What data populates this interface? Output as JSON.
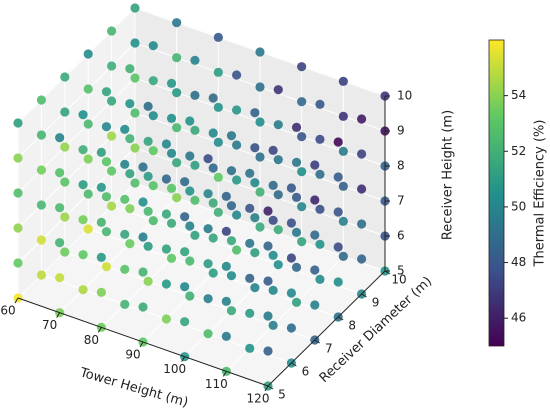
{
  "chart_data": {
    "type": "scatter3d",
    "xlabel": "Tower Height (m)",
    "ylabel": "Receiver Diameter (m)",
    "zlabel": "Receiver Height (m)",
    "colorbar_label": "Thermal Efficiency (%)",
    "xlim": [
      60,
      120
    ],
    "ylim": [
      5,
      10
    ],
    "zlim": [
      5,
      10
    ],
    "clim": [
      45,
      56
    ],
    "xticks": [
      60,
      70,
      80,
      90,
      100,
      110,
      120
    ],
    "yticks": [
      5,
      6,
      7,
      8,
      9,
      10
    ],
    "zticks": [
      5,
      6,
      7,
      8,
      9,
      10
    ],
    "cticks": [
      46,
      48,
      50,
      52,
      54
    ],
    "colormap": "viridis",
    "x": [
      60,
      60,
      60,
      60,
      60,
      60,
      60,
      60,
      60,
      60,
      60,
      60,
      60,
      60,
      60,
      60,
      60,
      60,
      60,
      60,
      60,
      60,
      60,
      60,
      60,
      60,
      60,
      60,
      60,
      60,
      60,
      60,
      60,
      60,
      60,
      60,
      70,
      70,
      70,
      70,
      70,
      70,
      70,
      70,
      70,
      70,
      70,
      70,
      70,
      70,
      70,
      70,
      70,
      70,
      70,
      70,
      70,
      70,
      70,
      70,
      70,
      70,
      70,
      70,
      70,
      70,
      70,
      70,
      70,
      70,
      70,
      70,
      80,
      80,
      80,
      80,
      80,
      80,
      80,
      80,
      80,
      80,
      80,
      80,
      80,
      80,
      80,
      80,
      80,
      80,
      80,
      80,
      80,
      80,
      80,
      80,
      80,
      80,
      80,
      80,
      80,
      80,
      80,
      80,
      80,
      80,
      80,
      80,
      90,
      90,
      90,
      90,
      90,
      90,
      90,
      90,
      90,
      90,
      90,
      90,
      90,
      90,
      90,
      90,
      90,
      90,
      90,
      90,
      90,
      90,
      90,
      90,
      90,
      90,
      90,
      90,
      90,
      90,
      90,
      90,
      90,
      90,
      90,
      90,
      100,
      100,
      100,
      100,
      100,
      100,
      100,
      100,
      100,
      100,
      100,
      100,
      100,
      100,
      100,
      100,
      100,
      100,
      100,
      100,
      100,
      100,
      100,
      100,
      100,
      100,
      100,
      100,
      100,
      100,
      100,
      100,
      100,
      100,
      100,
      100,
      110,
      110,
      110,
      110,
      110,
      110,
      110,
      110,
      110,
      110,
      110,
      110,
      110,
      110,
      110,
      110,
      110,
      110,
      110,
      110,
      110,
      110,
      110,
      110,
      110,
      110,
      110,
      110,
      110,
      110,
      110,
      110,
      110,
      110,
      110,
      110,
      120,
      120,
      120,
      120,
      120,
      120,
      120,
      120,
      120,
      120,
      120,
      120,
      120,
      120,
      120,
      120,
      120,
      120,
      120,
      120,
      120,
      120,
      120,
      120,
      120,
      120,
      120,
      120,
      120,
      120,
      120,
      120,
      120,
      120,
      120,
      120
    ],
    "y": [
      5,
      5,
      5,
      5,
      5,
      5,
      6,
      6,
      6,
      6,
      6,
      6,
      7,
      7,
      7,
      7,
      7,
      7,
      8,
      8,
      8,
      8,
      8,
      8,
      9,
      9,
      9,
      9,
      9,
      9,
      10,
      10,
      10,
      10,
      10,
      10,
      5,
      5,
      5,
      5,
      5,
      5,
      6,
      6,
      6,
      6,
      6,
      6,
      7,
      7,
      7,
      7,
      7,
      7,
      8,
      8,
      8,
      8,
      8,
      8,
      9,
      9,
      9,
      9,
      9,
      9,
      10,
      10,
      10,
      10,
      10,
      10,
      5,
      5,
      5,
      5,
      5,
      5,
      6,
      6,
      6,
      6,
      6,
      6,
      7,
      7,
      7,
      7,
      7,
      7,
      8,
      8,
      8,
      8,
      8,
      8,
      9,
      9,
      9,
      9,
      9,
      9,
      10,
      10,
      10,
      10,
      10,
      10,
      5,
      5,
      5,
      5,
      5,
      5,
      6,
      6,
      6,
      6,
      6,
      6,
      7,
      7,
      7,
      7,
      7,
      7,
      8,
      8,
      8,
      8,
      8,
      8,
      9,
      9,
      9,
      9,
      9,
      9,
      10,
      10,
      10,
      10,
      10,
      10,
      5,
      5,
      5,
      5,
      5,
      5,
      6,
      6,
      6,
      6,
      6,
      6,
      7,
      7,
      7,
      7,
      7,
      7,
      8,
      8,
      8,
      8,
      8,
      8,
      9,
      9,
      9,
      9,
      9,
      9,
      10,
      10,
      10,
      10,
      10,
      10,
      5,
      5,
      5,
      5,
      5,
      5,
      6,
      6,
      6,
      6,
      6,
      6,
      7,
      7,
      7,
      7,
      7,
      7,
      8,
      8,
      8,
      8,
      8,
      8,
      9,
      9,
      9,
      9,
      9,
      9,
      10,
      10,
      10,
      10,
      10,
      10,
      5,
      5,
      5,
      5,
      5,
      5,
      6,
      6,
      6,
      6,
      6,
      6,
      7,
      7,
      7,
      7,
      7,
      7,
      8,
      8,
      8,
      8,
      8,
      8,
      9,
      9,
      9,
      9,
      9,
      9,
      10,
      10,
      10,
      10,
      10,
      10
    ],
    "z": [
      5,
      6,
      7,
      8,
      9,
      10,
      5,
      6,
      7,
      8,
      9,
      10,
      5,
      6,
      7,
      8,
      9,
      10,
      5,
      6,
      7,
      8,
      9,
      10,
      5,
      6,
      7,
      8,
      9,
      10,
      5,
      6,
      7,
      8,
      9,
      10,
      5,
      6,
      7,
      8,
      9,
      10,
      5,
      6,
      7,
      8,
      9,
      10,
      5,
      6,
      7,
      8,
      9,
      10,
      5,
      6,
      7,
      8,
      9,
      10,
      5,
      6,
      7,
      8,
      9,
      10,
      5,
      6,
      7,
      8,
      9,
      10,
      5,
      6,
      7,
      8,
      9,
      10,
      5,
      6,
      7,
      8,
      9,
      10,
      5,
      6,
      7,
      8,
      9,
      10,
      5,
      6,
      7,
      8,
      9,
      10,
      5,
      6,
      7,
      8,
      9,
      10,
      5,
      6,
      7,
      8,
      9,
      10,
      5,
      6,
      7,
      8,
      9,
      10,
      5,
      6,
      7,
      8,
      9,
      10,
      5,
      6,
      7,
      8,
      9,
      10,
      5,
      6,
      7,
      8,
      9,
      10,
      5,
      6,
      7,
      8,
      9,
      10,
      5,
      6,
      7,
      8,
      9,
      10,
      5,
      6,
      7,
      8,
      9,
      10,
      5,
      6,
      7,
      8,
      9,
      10,
      5,
      6,
      7,
      8,
      9,
      10,
      5,
      6,
      7,
      8,
      9,
      10,
      5,
      6,
      7,
      8,
      9,
      10,
      5,
      6,
      7,
      8,
      9,
      10,
      5,
      6,
      7,
      8,
      9,
      10,
      5,
      6,
      7,
      8,
      9,
      10,
      5,
      6,
      7,
      8,
      9,
      10,
      5,
      6,
      7,
      8,
      9,
      10,
      5,
      6,
      7,
      8,
      9,
      10,
      5,
      6,
      7,
      8,
      9,
      10,
      5,
      6,
      7,
      8,
      9,
      10,
      5,
      6,
      7,
      8,
      9,
      10,
      5,
      6,
      7,
      8,
      9,
      10,
      5,
      6,
      7,
      8,
      9,
      10,
      5,
      6,
      7,
      8,
      9,
      10,
      5,
      6,
      7,
      8,
      9,
      10
    ],
    "values": [
      55.8,
      53.3,
      54.1,
      52.7,
      54.0,
      51.1,
      54.9,
      55.2,
      52.3,
      53.6,
      52.2,
      52.6,
      53.5,
      54.3,
      52.9,
      54.2,
      51.3,
      51.7,
      55.4,
      52.5,
      53.8,
      52.4,
      52.8,
      50.3,
      54.5,
      53.1,
      54.4,
      51.5,
      51.9,
      52.2,
      52.7,
      54.0,
      52.6,
      53.0,
      50.5,
      51.3,
      53.7,
      55.0,
      52.1,
      52.5,
      52.8,
      49.9,
      54.6,
      53.2,
      53.6,
      51.1,
      51.9,
      50.5,
      55.2,
      52.3,
      52.7,
      53.0,
      50.1,
      51.4,
      53.4,
      53.8,
      51.3,
      52.1,
      50.7,
      52.0,
      52.5,
      52.9,
      53.2,
      50.3,
      51.6,
      50.2,
      54.0,
      51.5,
      52.3,
      50.9,
      52.2,
      49.3,
      53.5,
      53.8,
      50.9,
      52.2,
      50.8,
      51.2,
      52.1,
      52.9,
      51.5,
      52.8,
      49.9,
      50.3,
      54.0,
      51.1,
      52.4,
      51.0,
      51.4,
      48.9,
      53.1,
      51.7,
      53.0,
      50.1,
      50.5,
      50.8,
      51.3,
      52.6,
      51.2,
      51.6,
      49.1,
      49.9,
      51.9,
      53.2,
      50.3,
      50.7,
      51.0,
      48.1,
      53.2,
      51.8,
      52.2,
      49.7,
      50.5,
      49.1,
      53.8,
      50.9,
      51.3,
      51.6,
      48.7,
      50.0,
      52.0,
      52.4,
      49.9,
      50.7,
      49.3,
      50.6,
      51.1,
      51.5,
      51.8,
      48.9,
      50.2,
      48.8,
      52.6,
      50.1,
      50.9,
      49.5,
      50.8,
      47.9,
      51.7,
      52.0,
      49.1,
      50.4,
      49.0,
      49.4,
      50.7,
      51.5,
      50.1,
      51.4,
      48.5,
      48.9,
      52.6,
      49.7,
      51.0,
      49.6,
      50.0,
      47.5,
      51.7,
      50.3,
      51.6,
      48.7,
      49.1,
      49.4,
      49.9,
      51.2,
      49.8,
      50.2,
      47.7,
      48.5,
      50.5,
      51.8,
      48.9,
      49.3,
      49.6,
      46.7,
      51.4,
      50.0,
      50.4,
      47.9,
      48.7,
      47.3,
      52.4,
      49.5,
      49.9,
      50.2,
      47.3,
      48.6,
      50.6,
      51.0,
      48.5,
      49.3,
      47.9,
      49.2,
      49.7,
      50.1,
      50.4,
      47.5,
      48.8,
      47.4,
      51.2,
      48.7,
      49.5,
      48.1,
      49.4,
      46.5,
      50.3,
      50.6,
      47.7,
      49.0,
      47.6,
      48.0,
      48.9,
      49.7,
      48.3,
      49.6,
      46.7,
      47.1,
      51.2,
      48.3,
      49.6,
      48.2,
      48.6,
      46.1,
      50.3,
      48.9,
      50.2,
      47.3,
      47.7,
      48.0,
      48.5,
      49.8,
      48.4,
      48.8,
      46.3,
      47.1,
      49.1,
      50.4,
      47.5,
      47.9,
      48.2,
      45.3,
      50.0,
      48.6,
      49.0,
      46.5,
      47.3,
      45.9,
      50.6,
      47.7,
      48.1,
      48.4,
      45.5,
      46.8
    ]
  }
}
